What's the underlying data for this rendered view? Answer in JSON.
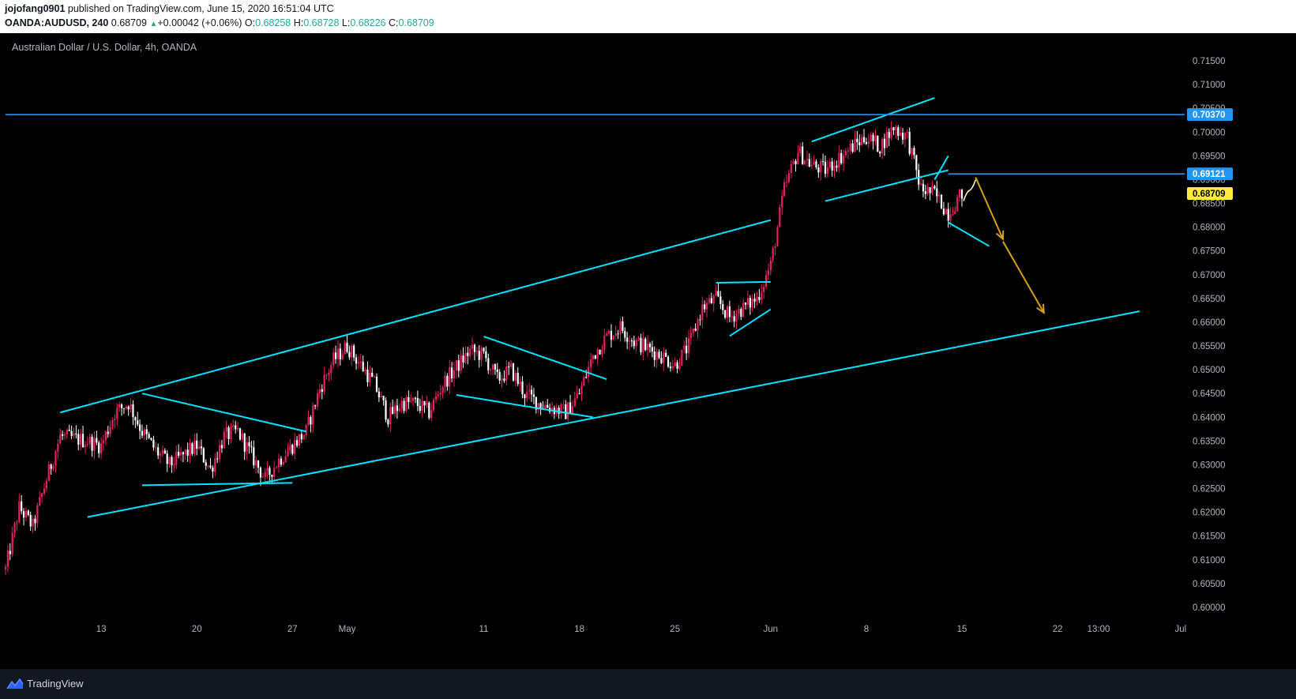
{
  "header": {
    "author": "jojofang0901",
    "published_text": "published on TradingView.com, June 15, 2020 16:51:04 UTC",
    "symbol": "OANDA:AUDUSD, 240",
    "last_price": "0.68709",
    "change": "+0.00042 (+0.06%)",
    "o_label": "O:",
    "o_value": "0.68258",
    "h_label": "H:",
    "h_value": "0.68728",
    "l_label": "L:",
    "l_value": "0.68226",
    "c_label": "C:",
    "c_value": "0.68709"
  },
  "footer": {
    "brand": "TradingView",
    "brand_icon": "tradingview-logo-icon"
  },
  "colors": {
    "background": "#000000",
    "bull": "#e91e63",
    "bear": "#ffffff",
    "trendline": "#00e5ff",
    "horizontal_line": "#2196f3",
    "projection_arrow": "#d4a017",
    "last_price_tag": "#ffeb3b"
  },
  "chart_data": {
    "type": "candlestick",
    "title": "Australian Dollar / U.S. Dollar, 4h, OANDA",
    "ylim": [
      0.5975,
      0.7175
    ],
    "y_ticks": [
      "0.60000",
      "0.60500",
      "0.61000",
      "0.61500",
      "0.62000",
      "0.62500",
      "0.63000",
      "0.63500",
      "0.64000",
      "0.64500",
      "0.65000",
      "0.65500",
      "0.66000",
      "0.66500",
      "0.67000",
      "0.67500",
      "0.68000",
      "0.68500",
      "0.69000",
      "0.69500",
      "0.70000",
      "0.70500",
      "0.71000",
      "0.71500"
    ],
    "x_ticks": [
      {
        "label": "13",
        "date": "2020-04-13"
      },
      {
        "label": "20",
        "date": "2020-04-20"
      },
      {
        "label": "27",
        "date": "2020-04-27"
      },
      {
        "label": "May",
        "date": "2020-05-01"
      },
      {
        "label": "11",
        "date": "2020-05-11"
      },
      {
        "label": "18",
        "date": "2020-05-18"
      },
      {
        "label": "25",
        "date": "2020-05-25"
      },
      {
        "label": "Jun",
        "date": "2020-06-01"
      },
      {
        "label": "8",
        "date": "2020-06-08"
      },
      {
        "label": "15",
        "date": "2020-06-15"
      },
      {
        "label": "22",
        "date": "2020-06-22"
      },
      {
        "label": "13:00",
        "date": "2020-06-25"
      },
      {
        "label": "Jul",
        "date": "2020-07-01"
      }
    ],
    "price_tags": [
      {
        "value": 0.7037,
        "label": "0.70370",
        "kind": "resistance"
      },
      {
        "value": 0.69121,
        "label": "0.69121",
        "kind": "support"
      },
      {
        "value": 0.68709,
        "label": "0.68709",
        "kind": "last"
      }
    ],
    "close_path": [
      [
        "2020-04-06",
        0.608
      ],
      [
        "2020-04-07",
        0.621
      ],
      [
        "2020-04-08",
        0.617
      ],
      [
        "2020-04-09",
        0.627
      ],
      [
        "2020-04-10",
        0.636
      ],
      [
        "2020-04-12",
        0.635
      ],
      [
        "2020-04-13",
        0.634
      ],
      [
        "2020-04-14",
        0.641
      ],
      [
        "2020-04-15",
        0.643
      ],
      [
        "2020-04-16",
        0.637
      ],
      [
        "2020-04-17",
        0.633
      ],
      [
        "2020-04-18",
        0.63
      ],
      [
        "2020-04-20",
        0.634
      ],
      [
        "2020-04-21",
        0.629
      ],
      [
        "2020-04-22",
        0.636
      ],
      [
        "2020-04-23",
        0.637
      ],
      [
        "2020-04-24",
        0.632
      ],
      [
        "2020-04-25",
        0.627
      ],
      [
        "2020-04-26",
        0.631
      ],
      [
        "2020-04-27",
        0.634
      ],
      [
        "2020-04-28",
        0.637
      ],
      [
        "2020-04-29",
        0.646
      ],
      [
        "2020-04-30",
        0.652
      ],
      [
        "2020-05-01",
        0.655
      ],
      [
        "2020-05-03",
        0.647
      ],
      [
        "2020-05-04",
        0.64
      ],
      [
        "2020-05-05",
        0.643
      ],
      [
        "2020-05-06",
        0.643
      ],
      [
        "2020-05-07",
        0.641
      ],
      [
        "2020-05-08",
        0.647
      ],
      [
        "2020-05-10",
        0.654
      ],
      [
        "2020-05-11",
        0.653
      ],
      [
        "2020-05-12",
        0.648
      ],
      [
        "2020-05-13",
        0.65
      ],
      [
        "2020-05-14",
        0.645
      ],
      [
        "2020-05-15",
        0.643
      ],
      [
        "2020-05-17",
        0.641
      ],
      [
        "2020-05-18",
        0.645
      ],
      [
        "2020-05-19",
        0.653
      ],
      [
        "2020-05-20",
        0.657
      ],
      [
        "2020-05-21",
        0.659
      ],
      [
        "2020-05-22",
        0.656
      ],
      [
        "2020-05-24",
        0.653
      ],
      [
        "2020-05-25",
        0.651
      ],
      [
        "2020-05-26",
        0.655
      ],
      [
        "2020-05-27",
        0.663
      ],
      [
        "2020-05-28",
        0.665
      ],
      [
        "2020-05-29",
        0.661
      ],
      [
        "2020-05-31",
        0.665
      ],
      [
        "2020-06-01",
        0.672
      ],
      [
        "2020-06-02",
        0.688
      ],
      [
        "2020-06-03",
        0.696
      ],
      [
        "2020-06-04",
        0.693
      ],
      [
        "2020-06-05",
        0.692
      ],
      [
        "2020-06-07",
        0.697
      ],
      [
        "2020-06-08",
        0.699
      ],
      [
        "2020-06-09",
        0.697
      ],
      [
        "2020-06-10",
        0.701
      ],
      [
        "2020-06-11",
        0.699
      ],
      [
        "2020-06-12",
        0.688
      ],
      [
        "2020-06-13",
        0.687
      ],
      [
        "2020-06-14",
        0.683
      ],
      [
        "2020-06-15",
        0.6871
      ]
    ],
    "trendlines": [
      {
        "name": "channel-upper",
        "from": [
          "2020-04-10",
          0.641
        ],
        "to": [
          "2020-06-01",
          0.6815
        ]
      },
      {
        "name": "channel-lower",
        "from": [
          "2020-04-12",
          0.619
        ],
        "to": [
          "2020-06-28",
          0.6623
        ]
      },
      {
        "name": "triangle1-upper",
        "from": [
          "2020-04-16",
          0.645
        ],
        "to": [
          "2020-04-28",
          0.637
        ]
      },
      {
        "name": "triangle1-lower",
        "from": [
          "2020-04-16",
          0.6257
        ],
        "to": [
          "2020-04-27",
          0.6262
        ]
      },
      {
        "name": "wedge-upper",
        "from": [
          "2020-05-11",
          0.657
        ],
        "to": [
          "2020-05-20",
          0.648
        ]
      },
      {
        "name": "wedge-lower",
        "from": [
          "2020-05-09",
          0.6447
        ],
        "to": [
          "2020-05-19",
          0.64
        ]
      },
      {
        "name": "flag-upper",
        "from": [
          "2020-05-28",
          0.6683
        ],
        "to": [
          "2020-06-01",
          0.6685
        ]
      },
      {
        "name": "flag-lower",
        "from": [
          "2020-05-29",
          0.6571
        ],
        "to": [
          "2020-06-01",
          0.6627
        ]
      },
      {
        "name": "rising-wedge-upper",
        "from": [
          "2020-06-04",
          0.698
        ],
        "to": [
          "2020-06-13",
          0.7072
        ]
      },
      {
        "name": "rising-wedge-lower",
        "from": [
          "2020-06-05",
          0.6855
        ],
        "to": [
          "2020-06-14",
          0.692
        ]
      },
      {
        "name": "breakdown-tick",
        "from": [
          "2020-06-13",
          0.69
        ],
        "to": [
          "2020-06-14",
          0.695
        ]
      },
      {
        "name": "down-channel-lower",
        "from": [
          "2020-06-14",
          0.681
        ],
        "to": [
          "2020-06-17",
          0.676
        ]
      }
    ],
    "horizontal_lines": [
      {
        "name": "resistance",
        "value": 0.7037,
        "from": "2020-04-06",
        "to": "2020-07-01"
      },
      {
        "name": "support",
        "value": 0.69121,
        "from": "2020-06-14",
        "to": "2020-07-01"
      }
    ],
    "projection_arrows": [
      {
        "from": [
          "2020-06-16",
          0.6905
        ],
        "to": [
          "2020-06-18",
          0.6775
        ]
      },
      {
        "from": [
          "2020-06-18",
          0.677
        ],
        "to": [
          "2020-06-21",
          0.662
        ]
      }
    ],
    "projection_wiggle": [
      [
        "2020-06-15",
        0.6855
      ],
      [
        "2020-06-16",
        0.69
      ]
    ]
  }
}
